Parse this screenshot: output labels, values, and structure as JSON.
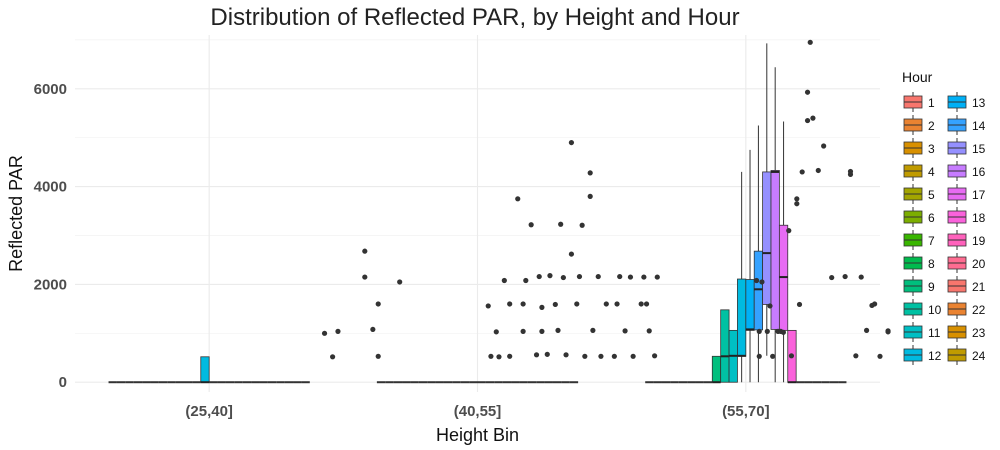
{
  "chart_data": {
    "type": "boxplot",
    "title": "Distribution of Reflected PAR, by Height and Hour",
    "xlabel": "Height Bin",
    "ylabel": "Reflected PAR",
    "categories": [
      "(25,40]",
      "(40,55]",
      "(55,70]"
    ],
    "ylim": [
      -200,
      7100
    ],
    "yticks": [
      0,
      2000,
      4000,
      6000
    ],
    "grid": true,
    "legend": {
      "title": "Hour",
      "position": "right",
      "entries": [
        "1",
        "2",
        "3",
        "4",
        "5",
        "6",
        "7",
        "8",
        "9",
        "10",
        "11",
        "12",
        "13",
        "14",
        "15",
        "16",
        "17",
        "18",
        "19",
        "20",
        "21",
        "22",
        "23",
        "24"
      ],
      "colors": [
        "#F8766D",
        "#EA8331",
        "#D89000",
        "#C09B00",
        "#A3A500",
        "#7CAE00",
        "#39B600",
        "#00BB4E",
        "#00BF7D",
        "#00C1A3",
        "#00BFC4",
        "#00BAE0",
        "#00B0F6",
        "#35A2FF",
        "#9590FF",
        "#C77CFF",
        "#E76BF3",
        "#FA62DB",
        "#FF62BC",
        "#FF6C91",
        "#F8766D",
        "#EA8331",
        "#D89000",
        "#C09B00"
      ]
    },
    "boxes": {
      "(25,40]": {
        "12": {
          "min": 0,
          "q1": 0,
          "median": 0,
          "q3": 520,
          "max": 520
        }
      },
      "(40,55]": {},
      "(55,70]": {
        "9": {
          "min": 0,
          "q1": 0,
          "median": 0,
          "q3": 530,
          "max": 530
        },
        "10": {
          "min": 0,
          "q1": 0,
          "median": 530,
          "q3": 1480,
          "max": 1480
        },
        "11": {
          "min": 0,
          "q1": 0,
          "median": 540,
          "q3": 1060,
          "max": 1060
        },
        "12": {
          "min": 0,
          "q1": 530,
          "median": 540,
          "q3": 2110,
          "max": 4300
        },
        "13": {
          "min": 0,
          "q1": 1060,
          "median": 1080,
          "q3": 2100,
          "max": 4750
        },
        "14": {
          "min": 0,
          "q1": 1070,
          "median": 1900,
          "q3": 2680,
          "max": 5250
        },
        "15": {
          "min": 540,
          "q1": 1590,
          "median": 2640,
          "q3": 4300,
          "max": 6930
        },
        "16": {
          "min": 0,
          "q1": 1080,
          "median": 4300,
          "q3": 4330,
          "max": 6440
        },
        "17": {
          "min": 0,
          "q1": 1060,
          "median": 2150,
          "q3": 3210,
          "max": 5330
        },
        "18": {
          "min": 0,
          "q1": 0,
          "median": 0,
          "q3": 1060,
          "max": 1060
        }
      }
    },
    "flatHours": {
      "(25,40]": [
        "1",
        "2",
        "3",
        "4",
        "5",
        "6",
        "7",
        "8",
        "9",
        "10",
        "11",
        "13",
        "14",
        "15",
        "16",
        "17",
        "18",
        "19",
        "20",
        "21",
        "22",
        "23",
        "24"
      ],
      "(40,55]": [
        "1",
        "2",
        "3",
        "4",
        "5",
        "6",
        "7",
        "8",
        "9",
        "10",
        "11",
        "12",
        "13",
        "14",
        "15",
        "16",
        "17",
        "18",
        "19",
        "20",
        "21",
        "22",
        "23",
        "24"
      ],
      "(55,70]": [
        "1",
        "2",
        "3",
        "4",
        "5",
        "6",
        "7",
        "8",
        "19",
        "20",
        "21",
        "22",
        "23",
        "24"
      ]
    },
    "outliers": [
      {
        "x": 0.43,
        "y": 1000
      },
      {
        "x": 0.46,
        "y": 520
      },
      {
        "x": 0.48,
        "y": 1040
      },
      {
        "x": 0.58,
        "y": 2680
      },
      {
        "x": 0.58,
        "y": 2150
      },
      {
        "x": 0.61,
        "y": 1080
      },
      {
        "x": 0.63,
        "y": 1600
      },
      {
        "x": 0.63,
        "y": 530
      },
      {
        "x": 0.71,
        "y": 2050
      },
      {
        "x": 1.04,
        "y": 1560
      },
      {
        "x": 1.05,
        "y": 530
      },
      {
        "x": 1.07,
        "y": 1030
      },
      {
        "x": 1.08,
        "y": 520
      },
      {
        "x": 1.1,
        "y": 2080
      },
      {
        "x": 1.12,
        "y": 1600
      },
      {
        "x": 1.12,
        "y": 530
      },
      {
        "x": 1.15,
        "y": 3750
      },
      {
        "x": 1.17,
        "y": 1040
      },
      {
        "x": 1.17,
        "y": 1600
      },
      {
        "x": 1.18,
        "y": 2080
      },
      {
        "x": 1.2,
        "y": 3220
      },
      {
        "x": 1.22,
        "y": 560
      },
      {
        "x": 1.23,
        "y": 2160
      },
      {
        "x": 1.24,
        "y": 1040
      },
      {
        "x": 1.24,
        "y": 1530
      },
      {
        "x": 1.26,
        "y": 570
      },
      {
        "x": 1.27,
        "y": 2180
      },
      {
        "x": 1.29,
        "y": 1590
      },
      {
        "x": 1.31,
        "y": 3230
      },
      {
        "x": 1.3,
        "y": 1060
      },
      {
        "x": 1.32,
        "y": 2140
      },
      {
        "x": 1.33,
        "y": 560
      },
      {
        "x": 1.35,
        "y": 2620
      },
      {
        "x": 1.35,
        "y": 4900
      },
      {
        "x": 1.37,
        "y": 1600
      },
      {
        "x": 1.38,
        "y": 2160
      },
      {
        "x": 1.39,
        "y": 3210
      },
      {
        "x": 1.4,
        "y": 530
      },
      {
        "x": 1.42,
        "y": 4280
      },
      {
        "x": 1.42,
        "y": 3800
      },
      {
        "x": 1.43,
        "y": 1060
      },
      {
        "x": 1.45,
        "y": 2160
      },
      {
        "x": 1.46,
        "y": 530
      },
      {
        "x": 1.48,
        "y": 1600
      },
      {
        "x": 1.51,
        "y": 530
      },
      {
        "x": 1.52,
        "y": 1600
      },
      {
        "x": 1.53,
        "y": 2160
      },
      {
        "x": 1.55,
        "y": 1050
      },
      {
        "x": 1.57,
        "y": 2150
      },
      {
        "x": 1.58,
        "y": 530
      },
      {
        "x": 1.61,
        "y": 1600
      },
      {
        "x": 1.62,
        "y": 2150
      },
      {
        "x": 1.63,
        "y": 1600
      },
      {
        "x": 1.64,
        "y": 1050
      },
      {
        "x": 1.66,
        "y": 540
      },
      {
        "x": 1.67,
        "y": 2150
      },
      {
        "x": 2.04,
        "y": 2080
      },
      {
        "x": 2.05,
        "y": 1040
      },
      {
        "x": 2.05,
        "y": 530
      },
      {
        "x": 2.06,
        "y": 2050
      },
      {
        "x": 2.08,
        "y": 1040
      },
      {
        "x": 2.09,
        "y": 1560
      },
      {
        "x": 2.1,
        "y": 530
      },
      {
        "x": 2.12,
        "y": 1040
      },
      {
        "x": 2.14,
        "y": 1020
      },
      {
        "x": 2.16,
        "y": 3100
      },
      {
        "x": 2.17,
        "y": 540
      },
      {
        "x": 2.19,
        "y": 3750
      },
      {
        "x": 2.19,
        "y": 3650
      },
      {
        "x": 2.2,
        "y": 1590
      },
      {
        "x": 2.21,
        "y": 4300
      },
      {
        "x": 2.23,
        "y": 5930
      },
      {
        "x": 2.23,
        "y": 5350
      },
      {
        "x": 2.24,
        "y": 6950
      },
      {
        "x": 2.25,
        "y": 5400
      },
      {
        "x": 2.27,
        "y": 4330
      },
      {
        "x": 2.29,
        "y": 4830
      },
      {
        "x": 2.32,
        "y": 2140
      },
      {
        "x": 2.37,
        "y": 2160
      },
      {
        "x": 2.39,
        "y": 4310
      },
      {
        "x": 2.39,
        "y": 4250
      },
      {
        "x": 2.41,
        "y": 540
      },
      {
        "x": 2.43,
        "y": 2150
      },
      {
        "x": 2.45,
        "y": 1060
      },
      {
        "x": 2.47,
        "y": 1570
      },
      {
        "x": 2.48,
        "y": 1600
      },
      {
        "x": 2.5,
        "y": 530
      },
      {
        "x": 2.53,
        "y": 1050
      },
      {
        "x": 2.53,
        "y": 1030
      },
      {
        "x": 2.13,
        "y": 1040
      }
    ]
  }
}
